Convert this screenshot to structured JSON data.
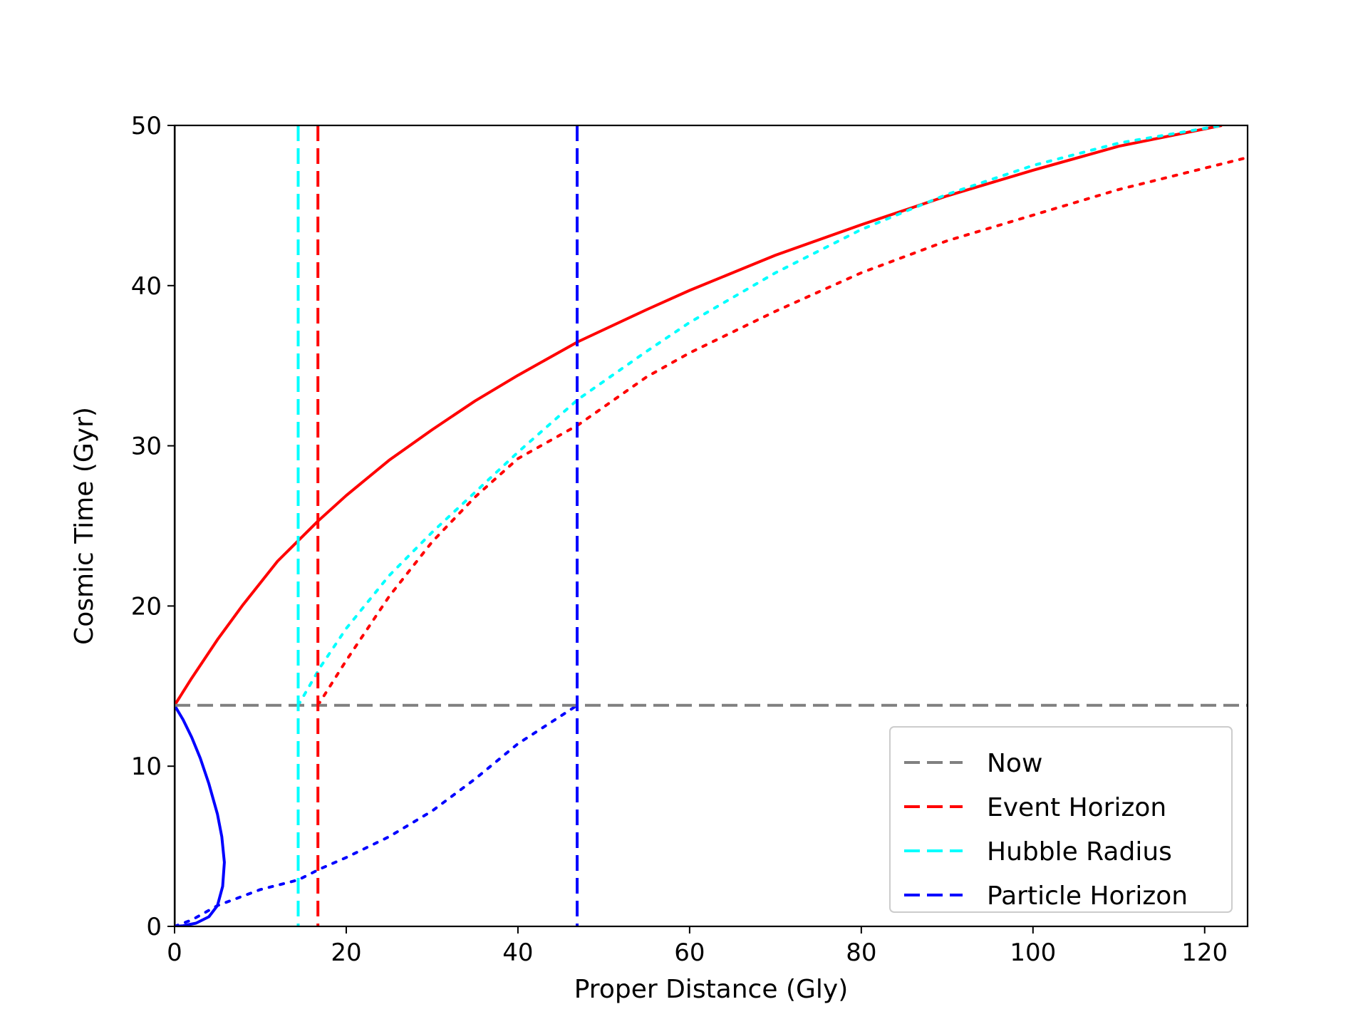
{
  "chart_data": {
    "type": "line",
    "xlabel": "Proper Distance (Gly)",
    "ylabel": "Cosmic Time (Gyr)",
    "xlim": [
      0,
      125
    ],
    "ylim": [
      0,
      50
    ],
    "xticks": [
      0,
      20,
      40,
      60,
      80,
      100,
      120
    ],
    "yticks": [
      0,
      10,
      20,
      30,
      40,
      50
    ],
    "grid": false,
    "legend_position": "lower-right",
    "legend": [
      {
        "label": "Now",
        "color": "#808080",
        "style": "dashed"
      },
      {
        "label": "Event Horizon",
        "color": "#ff0000",
        "style": "dashed"
      },
      {
        "label": "Hubble Radius",
        "color": "#00ffff",
        "style": "dashed"
      },
      {
        "label": "Particle Horizon",
        "color": "#0000ff",
        "style": "dashed"
      }
    ],
    "reference_lines": [
      {
        "label": "Now",
        "orientation": "horizontal",
        "y": 13.8,
        "color": "#808080",
        "style": "dashed"
      },
      {
        "label": "Hubble Radius",
        "orientation": "vertical",
        "x": 14.4,
        "color": "#00ffff",
        "style": "dashed"
      },
      {
        "label": "Event Horizon",
        "orientation": "vertical",
        "x": 16.7,
        "color": "#ff0000",
        "style": "dashed"
      },
      {
        "label": "Particle Horizon",
        "orientation": "vertical",
        "x": 46.9,
        "color": "#0000ff",
        "style": "dashed"
      }
    ],
    "series": [
      {
        "color": "#ff0000",
        "style": "solid",
        "points": [
          [
            0,
            13.8
          ],
          [
            2,
            15.5
          ],
          [
            5,
            17.9
          ],
          [
            8,
            20.1
          ],
          [
            12,
            22.8
          ],
          [
            16.7,
            25.3
          ],
          [
            20,
            26.9
          ],
          [
            25,
            29.1
          ],
          [
            30,
            31.0
          ],
          [
            35,
            32.8
          ],
          [
            40,
            34.4
          ],
          [
            47,
            36.5
          ],
          [
            55,
            38.5
          ],
          [
            60,
            39.7
          ],
          [
            70,
            41.9
          ],
          [
            80,
            43.8
          ],
          [
            90,
            45.6
          ],
          [
            100,
            47.2
          ],
          [
            110,
            48.7
          ],
          [
            122,
            50.0
          ]
        ]
      },
      {
        "color": "#00ffff",
        "style": "dotted",
        "points": [
          [
            14.4,
            13.8
          ],
          [
            17,
            16.2
          ],
          [
            20,
            18.6
          ],
          [
            25,
            21.9
          ],
          [
            30,
            24.6
          ],
          [
            35,
            27.1
          ],
          [
            40,
            29.6
          ],
          [
            47,
            32.9
          ],
          [
            55,
            35.9
          ],
          [
            60,
            37.7
          ],
          [
            70,
            40.8
          ],
          [
            80,
            43.5
          ],
          [
            90,
            45.7
          ],
          [
            100,
            47.5
          ],
          [
            110,
            48.9
          ],
          [
            122,
            50.0
          ]
        ]
      },
      {
        "color": "#ff0000",
        "style": "dotted",
        "points": [
          [
            16.7,
            13.8
          ],
          [
            20,
            16.6
          ],
          [
            25,
            20.6
          ],
          [
            30,
            24.0
          ],
          [
            35,
            26.8
          ],
          [
            40,
            29.2
          ],
          [
            47,
            31.3
          ],
          [
            55,
            34.3
          ],
          [
            60,
            35.8
          ],
          [
            70,
            38.4
          ],
          [
            80,
            40.8
          ],
          [
            90,
            42.8
          ],
          [
            100,
            44.4
          ],
          [
            110,
            46.0
          ],
          [
            125,
            48.0
          ]
        ]
      },
      {
        "color": "#0000ff",
        "style": "dotted",
        "points": [
          [
            0,
            0
          ],
          [
            2,
            0.4
          ],
          [
            5,
            1.3
          ],
          [
            10,
            2.3
          ],
          [
            14.4,
            2.9
          ],
          [
            17,
            3.6
          ],
          [
            20,
            4.3
          ],
          [
            25,
            5.6
          ],
          [
            30,
            7.2
          ],
          [
            35,
            9.2
          ],
          [
            40,
            11.4
          ],
          [
            46.9,
            13.8
          ]
        ]
      },
      {
        "color": "#0000ff",
        "style": "solid",
        "points": [
          [
            0,
            13.8
          ],
          [
            1,
            12.9
          ],
          [
            2,
            11.8
          ],
          [
            3,
            10.5
          ],
          [
            4,
            8.9
          ],
          [
            5,
            7.0
          ],
          [
            5.5,
            5.6
          ],
          [
            5.8,
            4.0
          ],
          [
            5.6,
            2.5
          ],
          [
            5.0,
            1.3
          ],
          [
            4.0,
            0.6
          ],
          [
            2.5,
            0.2
          ],
          [
            1,
            0.04
          ],
          [
            0,
            0
          ]
        ]
      }
    ]
  }
}
